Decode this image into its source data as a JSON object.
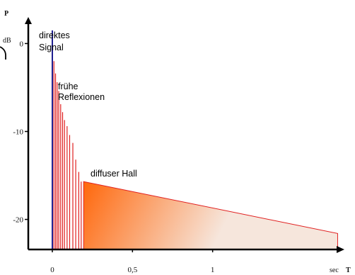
{
  "chart_data": {
    "type": "line",
    "title": "",
    "xlabel": "T",
    "x_unit": "sec",
    "ylabel": "P",
    "y_unit": "dB",
    "xlim": [
      -0.15,
      1.8
    ],
    "ylim": [
      -23.5,
      3.5
    ],
    "x_ticks": [
      {
        "value": 0,
        "label": "0"
      },
      {
        "value": 0.5,
        "label": "0,5"
      },
      {
        "value": 1,
        "label": "1"
      }
    ],
    "y_ticks": [
      {
        "value": 0,
        "label": "0"
      },
      {
        "value": -10,
        "label": "-10"
      },
      {
        "value": -20,
        "label": "-20"
      }
    ],
    "grid": false,
    "legend": "none",
    "colors": {
      "direct": "#1f1f8f",
      "reflections": "#e02020",
      "reverb_start": "#ff6a10",
      "reverb_end": "#f6e6dc",
      "axis": "#000000"
    },
    "direct_signal": {
      "x": 0,
      "y": 1.5
    },
    "early_reflections": [
      {
        "x": 0.01,
        "y": -2.0
      },
      {
        "x": 0.02,
        "y": -3.4
      },
      {
        "x": 0.03,
        "y": -4.4
      },
      {
        "x": 0.04,
        "y": -5.4
      },
      {
        "x": 0.052,
        "y": -6.9
      },
      {
        "x": 0.064,
        "y": -7.8
      },
      {
        "x": 0.076,
        "y": -8.7
      },
      {
        "x": 0.092,
        "y": -9.4
      },
      {
        "x": 0.108,
        "y": -10.4
      },
      {
        "x": 0.128,
        "y": -11.3
      },
      {
        "x": 0.146,
        "y": -13.2
      },
      {
        "x": 0.165,
        "y": -14.6
      },
      {
        "x": 0.18,
        "y": -15.7
      }
    ],
    "diffuse_reverb": {
      "x_start": 0.195,
      "y_start": -15.7,
      "x_end": 1.78,
      "y_end": -21.6
    },
    "annotations": [
      {
        "id": "direct",
        "lines": [
          "direktes",
          "Signal"
        ]
      },
      {
        "id": "early",
        "lines": [
          "frühe",
          "Reflexionen"
        ]
      },
      {
        "id": "diffuse",
        "lines": [
          "diffuser Hall"
        ]
      }
    ]
  }
}
